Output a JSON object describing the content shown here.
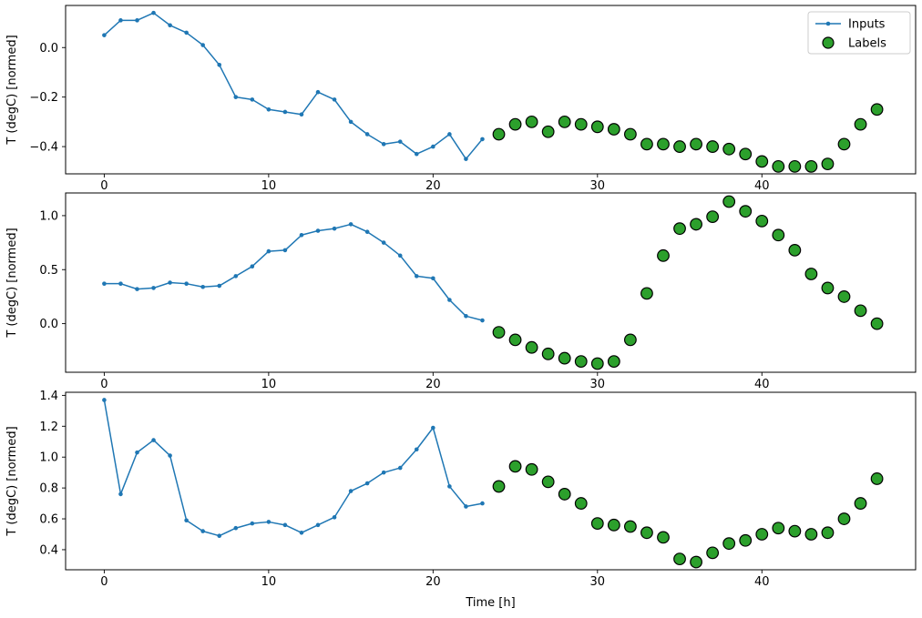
{
  "figure": {
    "background": "#ffffff",
    "xlabel": "Time [h]",
    "ylabel": "T (degC) [normed]"
  },
  "legend": {
    "entries": [
      {
        "label": "Inputs",
        "marker": "line-dot",
        "color": "#1f77b4"
      },
      {
        "label": "Labels",
        "marker": "circle",
        "color": "#2ca02c",
        "edge": "#000000"
      }
    ],
    "position": "top-right",
    "border_color": "#cccccc"
  },
  "chart_data": [
    {
      "type": "line",
      "title": "",
      "xlabel": "",
      "ylabel": "T (degC) [normed]",
      "xlim": [
        -2.35,
        49.35
      ],
      "ylim": [
        -0.51,
        0.17
      ],
      "xticks": [
        0,
        10,
        20,
        30,
        40
      ],
      "yticks": [
        0.0,
        -0.2,
        -0.4
      ],
      "legend": true,
      "series": [
        {
          "name": "Inputs",
          "type": "line",
          "color": "#1f77b4",
          "x": [
            0,
            1,
            2,
            3,
            4,
            5,
            6,
            7,
            8,
            9,
            10,
            11,
            12,
            13,
            14,
            15,
            16,
            17,
            18,
            19,
            20,
            21,
            22,
            23
          ],
          "y": [
            0.05,
            0.11,
            0.11,
            0.14,
            0.09,
            0.06,
            0.01,
            -0.07,
            -0.2,
            -0.21,
            -0.25,
            -0.26,
            -0.27,
            -0.18,
            -0.21,
            -0.3,
            -0.35,
            -0.39,
            -0.38,
            -0.43,
            -0.4,
            -0.35,
            -0.45,
            -0.37
          ]
        },
        {
          "name": "Labels",
          "type": "scatter",
          "color": "#2ca02c",
          "edge": "#000000",
          "x": [
            24,
            25,
            26,
            27,
            28,
            29,
            30,
            31,
            32,
            33,
            34,
            35,
            36,
            37,
            38,
            39,
            40,
            41,
            42,
            43,
            44,
            45,
            46,
            47
          ],
          "y": [
            -0.35,
            -0.31,
            -0.3,
            -0.34,
            -0.3,
            -0.31,
            -0.32,
            -0.33,
            -0.35,
            -0.39,
            -0.39,
            -0.4,
            -0.39,
            -0.4,
            -0.41,
            -0.43,
            -0.46,
            -0.48,
            -0.48,
            -0.48,
            -0.47,
            -0.39,
            -0.31,
            -0.25
          ]
        }
      ]
    },
    {
      "type": "line",
      "title": "",
      "xlabel": "",
      "ylabel": "T (degC) [normed]",
      "xlim": [
        -2.35,
        49.35
      ],
      "ylim": [
        -0.45,
        1.21
      ],
      "xticks": [
        0,
        10,
        20,
        30,
        40
      ],
      "yticks": [
        0.0,
        0.5,
        1.0
      ],
      "legend": false,
      "series": [
        {
          "name": "Inputs",
          "type": "line",
          "color": "#1f77b4",
          "x": [
            0,
            1,
            2,
            3,
            4,
            5,
            6,
            7,
            8,
            9,
            10,
            11,
            12,
            13,
            14,
            15,
            16,
            17,
            18,
            19,
            20,
            21,
            22,
            23
          ],
          "y": [
            0.37,
            0.37,
            0.32,
            0.33,
            0.38,
            0.37,
            0.34,
            0.35,
            0.44,
            0.53,
            0.67,
            0.68,
            0.82,
            0.86,
            0.88,
            0.92,
            0.85,
            0.75,
            0.63,
            0.44,
            0.42,
            0.22,
            0.07,
            0.03
          ]
        },
        {
          "name": "Labels",
          "type": "scatter",
          "color": "#2ca02c",
          "edge": "#000000",
          "x": [
            24,
            25,
            26,
            27,
            28,
            29,
            30,
            31,
            32,
            33,
            34,
            35,
            36,
            37,
            38,
            39,
            40,
            41,
            42,
            43,
            44,
            45,
            46,
            47
          ],
          "y": [
            -0.08,
            -0.15,
            -0.22,
            -0.28,
            -0.32,
            -0.35,
            -0.37,
            -0.35,
            -0.15,
            0.28,
            0.63,
            0.88,
            0.92,
            0.99,
            1.13,
            1.04,
            0.95,
            0.82,
            0.68,
            0.46,
            0.33,
            0.25,
            0.12,
            0.0
          ]
        }
      ]
    },
    {
      "type": "line",
      "title": "",
      "xlabel": "Time [h]",
      "ylabel": "T (degC) [normed]",
      "xlim": [
        -2.35,
        49.35
      ],
      "ylim": [
        0.27,
        1.42
      ],
      "xticks": [
        0,
        10,
        20,
        30,
        40
      ],
      "yticks": [
        0.4,
        0.6,
        0.8,
        1.0,
        1.2,
        1.4
      ],
      "legend": false,
      "series": [
        {
          "name": "Inputs",
          "type": "line",
          "color": "#1f77b4",
          "x": [
            0,
            1,
            2,
            3,
            4,
            5,
            6,
            7,
            8,
            9,
            10,
            11,
            12,
            13,
            14,
            15,
            16,
            17,
            18,
            19,
            20,
            21,
            22,
            23
          ],
          "y": [
            1.37,
            0.76,
            1.03,
            1.11,
            1.01,
            0.59,
            0.52,
            0.49,
            0.54,
            0.57,
            0.58,
            0.56,
            0.51,
            0.56,
            0.61,
            0.78,
            0.83,
            0.9,
            0.93,
            1.05,
            1.19,
            0.81,
            0.68,
            0.7
          ]
        },
        {
          "name": "Labels",
          "type": "scatter",
          "color": "#2ca02c",
          "edge": "#000000",
          "x": [
            24,
            25,
            26,
            27,
            28,
            29,
            30,
            31,
            32,
            33,
            34,
            35,
            36,
            37,
            38,
            39,
            40,
            41,
            42,
            43,
            44,
            45,
            46,
            47
          ],
          "y": [
            0.81,
            0.94,
            0.92,
            0.84,
            0.76,
            0.7,
            0.57,
            0.56,
            0.55,
            0.51,
            0.48,
            0.34,
            0.32,
            0.38,
            0.44,
            0.46,
            0.5,
            0.54,
            0.52,
            0.5,
            0.51,
            0.6,
            0.7,
            0.86
          ]
        }
      ]
    }
  ]
}
